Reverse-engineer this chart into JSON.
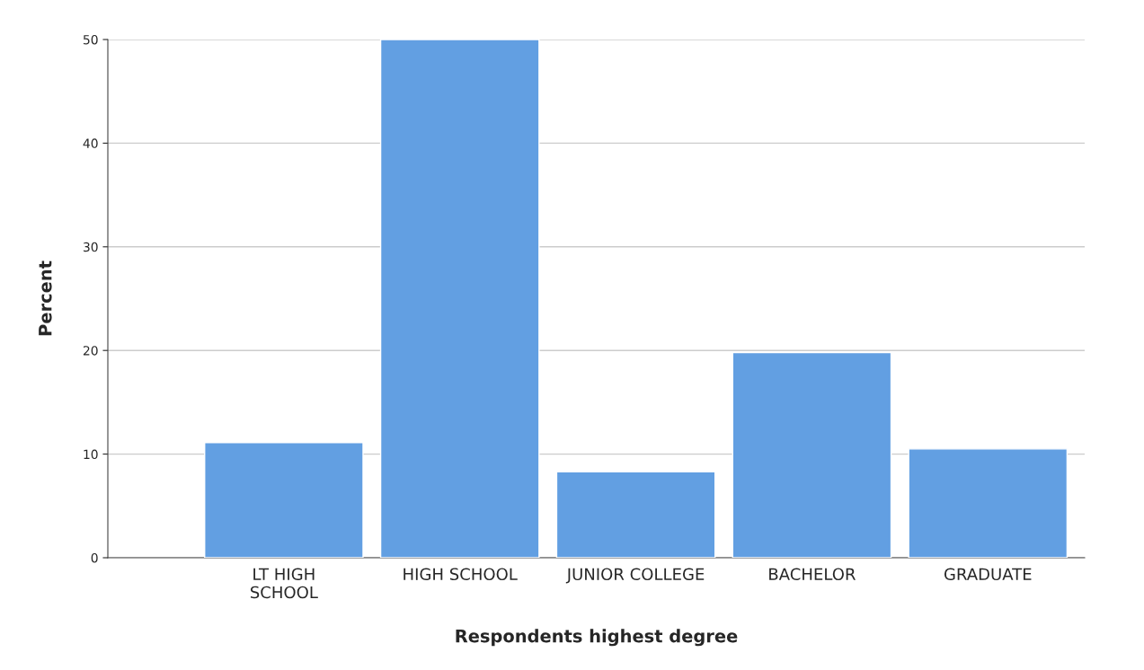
{
  "chart_data": {
    "type": "bar",
    "xlabel": "Respondents highest degree",
    "ylabel": "Percent",
    "categories": [
      "LT HIGH\nSCHOOL",
      "HIGH SCHOOL",
      "JUNIOR COLLEGE",
      "BACHELOR",
      "GRADUATE"
    ],
    "values": [
      11.1,
      50.0,
      8.3,
      19.8,
      10.5
    ],
    "color": "#629fe2",
    "ylim": [
      0,
      50
    ],
    "yticks": [
      0,
      10,
      20,
      30,
      40,
      50
    ],
    "grid": "y"
  }
}
